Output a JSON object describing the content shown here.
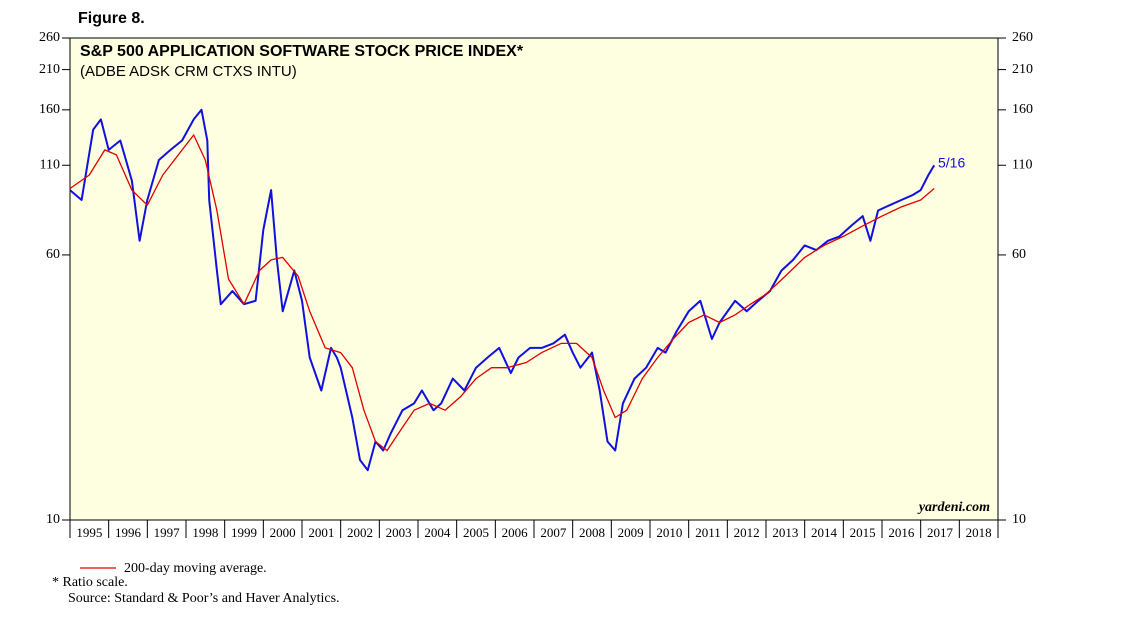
{
  "chart_data": {
    "type": "line",
    "figure_label": "Figure 8.",
    "title": "S&P 500 APPLICATION SOFTWARE STOCK PRICE INDEX*",
    "subtitle": "(ADBE ADSK CRM CTXS INTU)",
    "annotation": "5/16",
    "watermark": "yardeni.com",
    "footnote": "*  Ratio scale.",
    "source": "Source: Standard & Poor’s and Haver Analytics.",
    "log_scale": true,
    "plot_background": "#fefee0",
    "xlim": [
      1995,
      2019
    ],
    "xticks": [
      1995,
      1996,
      1997,
      1998,
      1999,
      2000,
      2001,
      2002,
      2003,
      2004,
      2005,
      2006,
      2007,
      2008,
      2009,
      2010,
      2011,
      2012,
      2013,
      2014,
      2015,
      2016,
      2017,
      2018
    ],
    "ylim": [
      10,
      260
    ],
    "yticks": [
      10,
      60,
      110,
      160,
      210,
      260
    ],
    "series": [
      {
        "color": "#1010e0",
        "x": [
          1995.0,
          1995.3,
          1995.6,
          1995.8,
          1996.0,
          1996.3,
          1996.6,
          1996.8,
          1997.0,
          1997.3,
          1997.6,
          1997.9,
          1998.2,
          1998.4,
          1998.55,
          1998.6,
          1998.8,
          1998.9,
          1999.2,
          1999.5,
          1999.8,
          2000.0,
          2000.2,
          2000.35,
          2000.5,
          2000.8,
          2001.0,
          2001.2,
          2001.5,
          2001.75,
          2001.9,
          2002.0,
          2002.3,
          2002.5,
          2002.7,
          2002.9,
          2003.1,
          2003.3,
          2003.6,
          2003.9,
          2004.1,
          2004.4,
          2004.6,
          2004.9,
          2005.2,
          2005.5,
          2005.8,
          2006.1,
          2006.4,
          2006.6,
          2006.9,
          2007.2,
          2007.5,
          2007.8,
          2008.0,
          2008.2,
          2008.5,
          2008.7,
          2008.9,
          2009.1,
          2009.3,
          2009.6,
          2009.9,
          2010.2,
          2010.4,
          2010.7,
          2011.0,
          2011.3,
          2011.6,
          2011.8,
          2012.2,
          2012.5,
          2012.8,
          2013.1,
          2013.4,
          2013.7,
          2014.0,
          2014.3,
          2014.6,
          2014.9,
          2015.2,
          2015.5,
          2015.7,
          2015.9,
          2016.2,
          2016.5,
          2016.8,
          2017.0,
          2017.2,
          2017.35
        ],
        "values": [
          93,
          87,
          140,
          150,
          122,
          130,
          99,
          66,
          87,
          114,
          122,
          130,
          150,
          160,
          130,
          87,
          54,
          43,
          47,
          43,
          44,
          71,
          93,
          58,
          41,
          54,
          44,
          30,
          24,
          32,
          30,
          28,
          20,
          15,
          14,
          17,
          16,
          18,
          21,
          22,
          24,
          21,
          22,
          26,
          24,
          28,
          30,
          32,
          27,
          30,
          32,
          32,
          33,
          35,
          31,
          28,
          31,
          24,
          17,
          16,
          22,
          26,
          28,
          32,
          31,
          36,
          41,
          44,
          34,
          38,
          44,
          41,
          44,
          47,
          54,
          58,
          64,
          62,
          66,
          68,
          73,
          78,
          66,
          81,
          84,
          87,
          90,
          93,
          103,
          110
        ]
      },
      {
        "name": "200-day moving average.",
        "color": "#e00000",
        "x": [
          1995.0,
          1995.5,
          1995.9,
          1996.2,
          1996.6,
          1997.0,
          1997.4,
          1997.8,
          1998.2,
          1998.5,
          1998.8,
          1999.1,
          1999.5,
          1999.9,
          2000.2,
          2000.5,
          2000.9,
          2001.2,
          2001.6,
          2002.0,
          2002.3,
          2002.6,
          2002.9,
          2003.2,
          2003.5,
          2003.9,
          2004.3,
          2004.7,
          2005.1,
          2005.5,
          2005.9,
          2006.3,
          2006.8,
          2007.2,
          2007.7,
          2008.1,
          2008.5,
          2008.8,
          2009.1,
          2009.4,
          2009.8,
          2010.2,
          2010.6,
          2011.0,
          2011.4,
          2011.8,
          2012.2,
          2012.6,
          2013.0,
          2013.5,
          2014.0,
          2014.5,
          2015.0,
          2015.5,
          2016.0,
          2016.5,
          2017.0,
          2017.35
        ],
        "values": [
          94,
          103,
          122,
          118,
          93,
          84,
          103,
          118,
          135,
          114,
          81,
          51,
          43,
          54,
          58,
          59,
          52,
          41,
          32,
          31,
          28,
          21,
          17,
          16,
          18,
          21,
          22,
          21,
          23,
          26,
          28,
          28,
          29,
          31,
          33,
          33,
          30,
          24,
          20,
          21,
          26,
          30,
          34,
          38,
          40,
          38,
          40,
          43,
          46,
          52,
          59,
          64,
          68,
          73,
          78,
          83,
          87,
          94
        ]
      }
    ]
  }
}
